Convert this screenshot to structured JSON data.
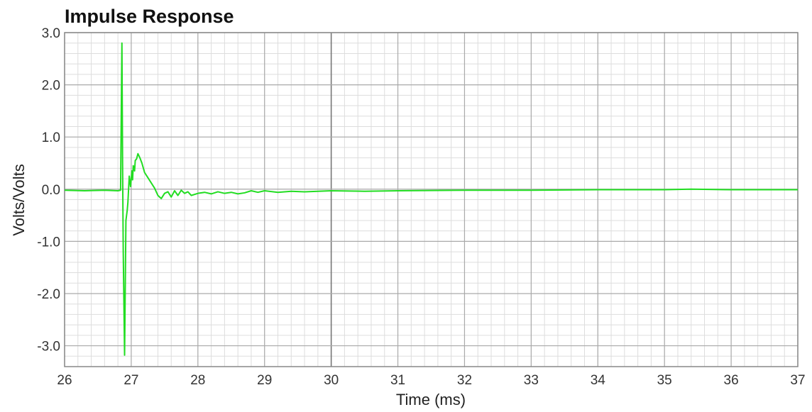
{
  "chart_data": {
    "type": "line",
    "title": "Impulse Response",
    "xlabel": "Time (ms)",
    "ylabel": "Volts/Volts",
    "xlim": [
      26,
      37
    ],
    "ylim": [
      -3.4,
      3.0
    ],
    "x_ticks": [
      26,
      27,
      28,
      29,
      30,
      31,
      32,
      33,
      34,
      35,
      36,
      37
    ],
    "x_tick_labels": [
      "26",
      "27",
      "28",
      "29",
      "30",
      "31",
      "32",
      "33",
      "34",
      "35",
      "36",
      "37"
    ],
    "y_ticks": [
      3.0,
      2.0,
      1.0,
      0.0,
      -1.0,
      -2.0,
      -3.0
    ],
    "y_tick_labels": [
      "3.0",
      "2.0",
      "1.0",
      "0.0",
      "-1.0",
      "-2.0",
      "-3.0"
    ],
    "x_minor_step": 0.2,
    "y_minor_step": 0.2,
    "grid": true,
    "highlight_x": 30,
    "colors": {
      "series": "#22dd22",
      "major_grid": "#aaaaaa",
      "minor_grid": "#dddddd",
      "highlight_grid": "#777777",
      "frame": "#888888"
    },
    "series": [
      {
        "x": [
          26.0,
          26.3,
          26.6,
          26.8,
          26.84,
          26.86,
          26.87,
          26.88,
          26.89,
          26.9,
          26.92,
          26.94,
          26.95,
          26.97,
          26.99,
          27.01,
          27.02,
          27.03,
          27.05,
          27.06,
          27.08,
          27.1,
          27.13,
          27.16,
          27.2,
          27.25,
          27.3,
          27.35,
          27.4,
          27.45,
          27.5,
          27.55,
          27.6,
          27.65,
          27.7,
          27.75,
          27.8,
          27.85,
          27.9,
          28.0,
          28.1,
          28.2,
          28.3,
          28.4,
          28.5,
          28.6,
          28.7,
          28.8,
          28.9,
          29.0,
          29.2,
          29.4,
          29.6,
          29.8,
          30.0,
          30.5,
          31.0,
          32.0,
          33.0,
          34.0,
          35.0,
          35.4,
          36.0,
          37.0
        ],
        "y": [
          -0.02,
          -0.03,
          -0.02,
          -0.03,
          -0.02,
          2.8,
          0.5,
          -1.2,
          -2.2,
          -3.18,
          -0.6,
          -0.4,
          -0.25,
          0.25,
          0.05,
          0.35,
          0.18,
          0.45,
          0.35,
          0.55,
          0.58,
          0.68,
          0.6,
          0.5,
          0.32,
          0.22,
          0.12,
          0.02,
          -0.12,
          -0.18,
          -0.08,
          -0.05,
          -0.15,
          -0.03,
          -0.12,
          -0.02,
          -0.08,
          -0.05,
          -0.12,
          -0.08,
          -0.06,
          -0.09,
          -0.05,
          -0.08,
          -0.06,
          -0.09,
          -0.07,
          -0.03,
          -0.06,
          -0.03,
          -0.06,
          -0.04,
          -0.05,
          -0.04,
          -0.03,
          -0.04,
          -0.03,
          -0.02,
          -0.02,
          -0.01,
          -0.01,
          0.0,
          -0.01,
          -0.01
        ]
      }
    ]
  }
}
